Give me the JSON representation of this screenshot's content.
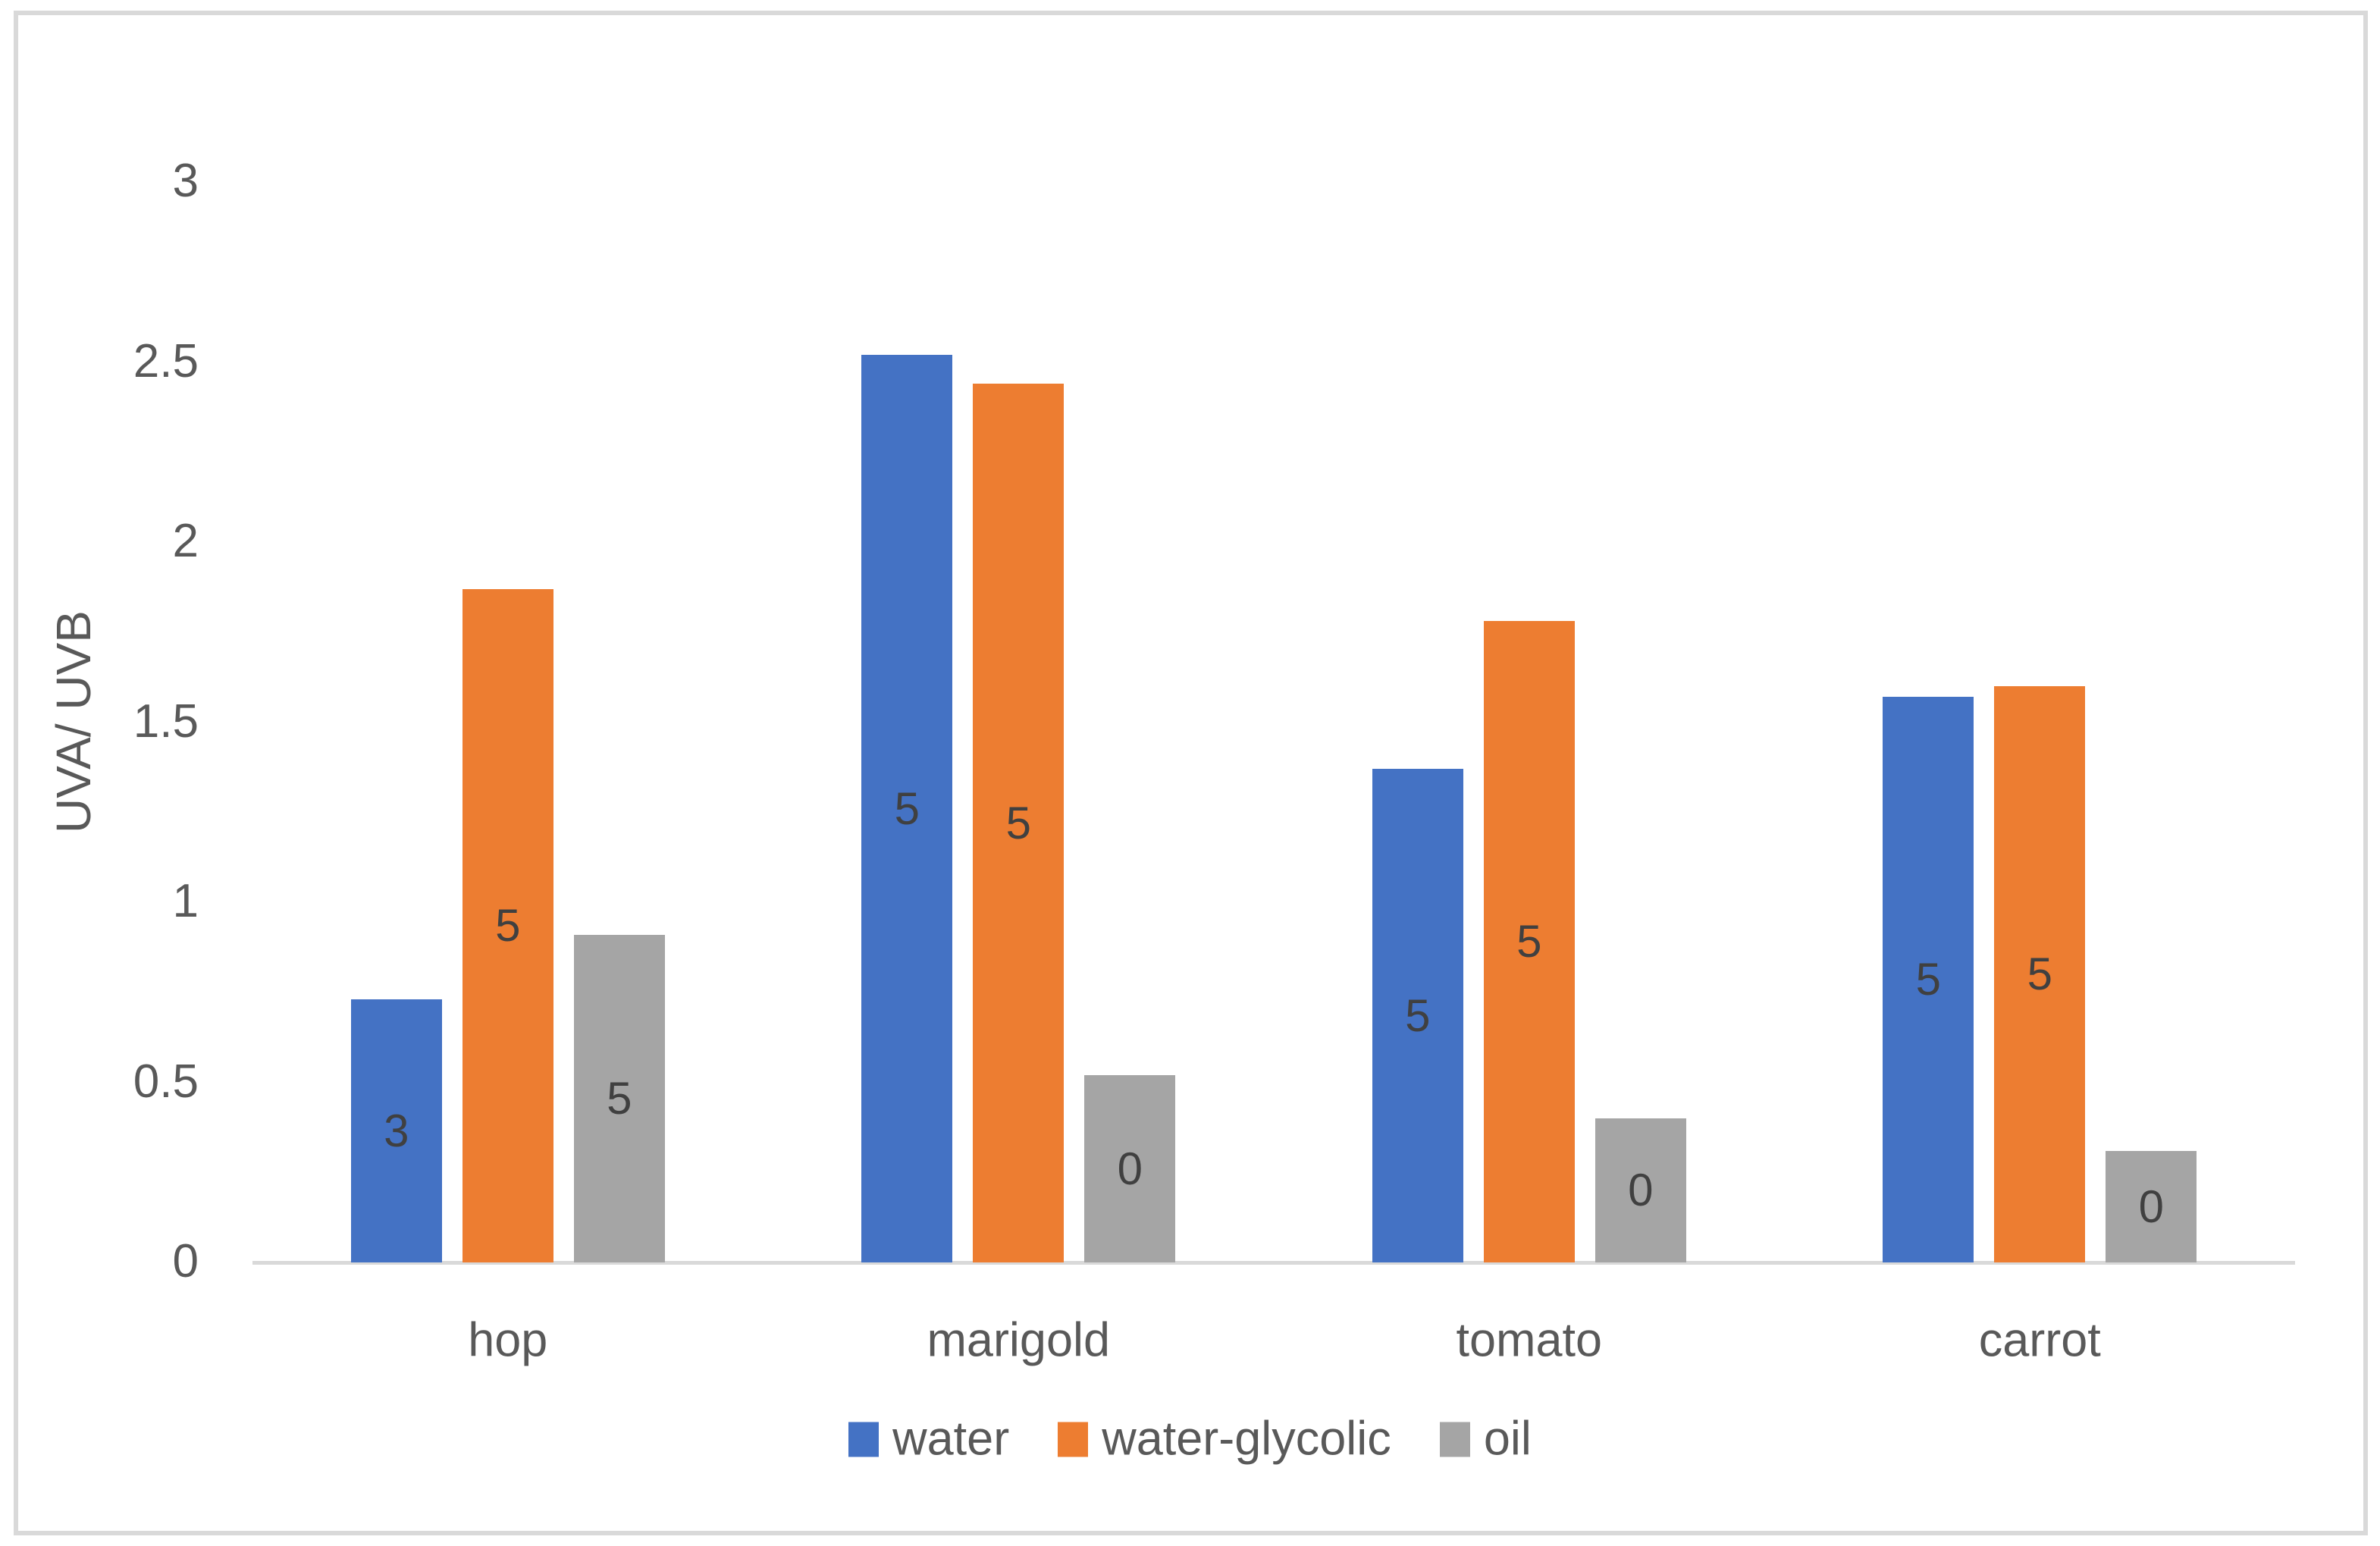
{
  "chart_data": {
    "type": "bar",
    "title": "",
    "categories": [
      "hop",
      "marigold",
      "tomato",
      "carrot"
    ],
    "series": [
      {
        "name": "water",
        "color": "#4472C4",
        "values": [
          0.73,
          2.52,
          1.37,
          1.57
        ],
        "bar_labels": [
          "3",
          "5",
          "5",
          "5"
        ]
      },
      {
        "name": "water-glycolic",
        "color": "#ED7D31",
        "values": [
          1.87,
          2.44,
          1.78,
          1.6
        ],
        "bar_labels": [
          "5",
          "5",
          "5",
          "5"
        ]
      },
      {
        "name": "oil",
        "color": "#A5A5A5",
        "values": [
          0.91,
          0.52,
          0.4,
          0.31
        ],
        "bar_labels": [
          "5",
          "0",
          "0",
          "0"
        ]
      }
    ],
    "xlabel": "",
    "ylabel": "UVA/ UVB",
    "ylim": [
      0,
      3
    ],
    "yticks": [
      0,
      0.5,
      1,
      1.5,
      2,
      2.5,
      3
    ],
    "ytick_labels": [
      "0",
      "0.5",
      "1",
      "1.5",
      "2",
      "2.5",
      "3"
    ],
    "grid": false,
    "legend_position": "bottom",
    "data_labels_position": "center-inside-bar"
  },
  "colors": {
    "background": "#FFFFFF",
    "chart_border": "#D9D9D9",
    "axis_line": "#D9D9D9",
    "axis_text": "#595959",
    "data_label_text": "#404040"
  }
}
